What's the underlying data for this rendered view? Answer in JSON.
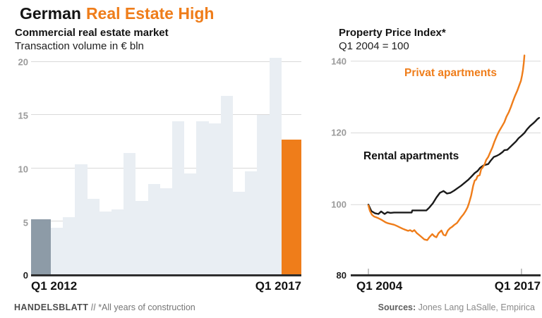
{
  "header": {
    "title_black": "German",
    "title_orange": "Real Estate High"
  },
  "left_chart": {
    "title": "Commercial real estate market",
    "subtitle": "Transaction volume in € bln",
    "x_left_label": "Q1 2012",
    "x_right_label": "Q1 2017"
  },
  "right_chart": {
    "title": "Property Price Index*",
    "subtitle": "Q1 2004 = 100",
    "x_left_label": "Q1 2004",
    "x_right_label": "Q1 2017",
    "label_privat": "Privat apartments",
    "label_rental": "Rental apartments"
  },
  "footer": {
    "brand": "HANDELSBLATT",
    "separator": "//",
    "note": "*All years of construction",
    "sources_label": "Sources:",
    "sources_value": "Jones Lang LaSalle, Empirica"
  },
  "colors": {
    "accent_orange": "#ef7d1a",
    "highlight_gray": "#8d9ba7",
    "background_bar": "#e9eef3",
    "gridline": "#d9d9d9",
    "axis_dark": "#2e2e2e",
    "tick_label": "#9b9b9b",
    "line_black": "#1a1a1a"
  },
  "chart_data": [
    {
      "type": "bar",
      "title": "Commercial real estate market",
      "ylabel": "Transaction volume in € bln",
      "x_start": "Q1 2012",
      "x_end": "Q1 2017",
      "frequency": "quarterly",
      "ylim": [
        0,
        21
      ],
      "yticks": [
        0,
        5,
        10,
        15,
        20
      ],
      "grid": true,
      "values": [
        5.2,
        4.4,
        5.4,
        10.4,
        7.1,
        5.9,
        6.1,
        11.4,
        6.9,
        8.5,
        8.1,
        14.4,
        9.5,
        14.4,
        14.2,
        16.8,
        7.8,
        9.7,
        15.0,
        20.4,
        12.7
      ],
      "highlight_first_color": "#8d9ba7",
      "highlight_last_color": "#ef7d1a",
      "default_color": "#e9eef3"
    },
    {
      "type": "line",
      "title": "Property Price Index*",
      "subtitle": "Q1 2004 = 100",
      "x_unit": "quarters since Q1 2004",
      "xlim": [
        -6,
        58.5
      ],
      "ylim": [
        80,
        142.3
      ],
      "yticks": [
        80,
        100,
        120,
        140
      ],
      "grid": true,
      "x_ticks": [
        {
          "q": 0,
          "label": "Q1 2004"
        },
        {
          "q": 52,
          "label": "Q1 2017"
        }
      ],
      "series": [
        {
          "name": "Privat apartments",
          "color": "#ef7d1a",
          "points": [
            [
              0,
              99.8
            ],
            [
              0.5,
              98.3
            ],
            [
              1.2,
              97.2
            ],
            [
              1.9,
              96.7
            ],
            [
              2.9,
              96.4
            ],
            [
              3.9,
              96.0
            ],
            [
              4.8,
              95.6
            ],
            [
              5.8,
              95.1
            ],
            [
              6.7,
              94.8
            ],
            [
              7.7,
              94.6
            ],
            [
              8.7,
              94.4
            ],
            [
              9.6,
              94.1
            ],
            [
              10.6,
              93.7
            ],
            [
              11.6,
              93.3
            ],
            [
              12.5,
              93.0
            ],
            [
              13.5,
              92.7
            ],
            [
              14.2,
              92.9
            ],
            [
              14.9,
              92.5
            ],
            [
              15.6,
              92.9
            ],
            [
              16.4,
              92.1
            ],
            [
              17.3,
              91.5
            ],
            [
              18.3,
              90.8
            ],
            [
              19,
              90.3
            ],
            [
              20,
              90.1
            ],
            [
              20.7,
              90.9
            ],
            [
              21.7,
              91.8
            ],
            [
              22.4,
              91.2
            ],
            [
              23.1,
              90.9
            ],
            [
              23.8,
              92.0
            ],
            [
              24.8,
              92.8
            ],
            [
              25.5,
              91.6
            ],
            [
              26.2,
              91.4
            ],
            [
              27,
              92.8
            ],
            [
              27.7,
              93.4
            ],
            [
              28.4,
              93.8
            ],
            [
              29.1,
              94.3
            ],
            [
              30.1,
              94.9
            ],
            [
              30.8,
              95.7
            ],
            [
              31.5,
              96.5
            ],
            [
              32.3,
              97.3
            ],
            [
              33,
              98.2
            ],
            [
              33.7,
              99.3
            ],
            [
              34.2,
              100.5
            ],
            [
              34.9,
              102.5
            ],
            [
              35.6,
              105.3
            ],
            [
              36.1,
              106.7
            ],
            [
              36.6,
              107.0
            ],
            [
              37.1,
              108.0
            ],
            [
              37.8,
              108.2
            ],
            [
              38.3,
              109.9
            ],
            [
              38.8,
              110.3
            ],
            [
              39.5,
              111.3
            ],
            [
              40,
              112.4
            ],
            [
              40.7,
              113.3
            ],
            [
              41.4,
              114.6
            ],
            [
              42.1,
              115.9
            ],
            [
              42.8,
              117.5
            ],
            [
              43.6,
              119.1
            ],
            [
              44.3,
              120.3
            ],
            [
              45,
              121.3
            ],
            [
              45.5,
              122.0
            ],
            [
              46.2,
              123.0
            ],
            [
              46.9,
              124.5
            ],
            [
              47.7,
              125.8
            ],
            [
              48.4,
              127.2
            ],
            [
              49.1,
              128.8
            ],
            [
              49.8,
              130.3
            ],
            [
              50.6,
              131.8
            ],
            [
              51.3,
              133.4
            ],
            [
              51.8,
              134.5
            ],
            [
              52.2,
              136.0
            ],
            [
              52.5,
              137.5
            ],
            [
              52.8,
              139.5
            ],
            [
              53,
              141.6
            ]
          ]
        },
        {
          "name": "Rental apartments",
          "color": "#1a1a1a",
          "points": [
            [
              0,
              100
            ],
            [
              1,
              98.2
            ],
            [
              2.2,
              97.6
            ],
            [
              3.4,
              97.4
            ],
            [
              4.3,
              98.1
            ],
            [
              5.5,
              97.4
            ],
            [
              6.5,
              97.9
            ],
            [
              7.5,
              97.7
            ],
            [
              8.7,
              97.8
            ],
            [
              14.7,
              97.8
            ],
            [
              14.9,
              98.4
            ],
            [
              19.7,
              98.4
            ],
            [
              20.7,
              99.2
            ],
            [
              21.9,
              100.4
            ],
            [
              23.1,
              102.0
            ],
            [
              24.3,
              103.3
            ],
            [
              25.5,
              103.8
            ],
            [
              26.7,
              103.1
            ],
            [
              27.9,
              103.3
            ],
            [
              29.1,
              103.9
            ],
            [
              30.3,
              104.6
            ],
            [
              31.5,
              105.3
            ],
            [
              32.7,
              106.1
            ],
            [
              33.9,
              106.9
            ],
            [
              35.1,
              107.9
            ],
            [
              36.1,
              108.8
            ],
            [
              37.1,
              109.4
            ],
            [
              38,
              110.3
            ],
            [
              39,
              110.9
            ],
            [
              39.7,
              111.1
            ],
            [
              40.7,
              111.3
            ],
            [
              41.6,
              112.3
            ],
            [
              42.6,
              113.3
            ],
            [
              43.6,
              113.6
            ],
            [
              44.5,
              114.0
            ],
            [
              45.5,
              114.6
            ],
            [
              46.2,
              115.2
            ],
            [
              47.2,
              115.3
            ],
            [
              48.1,
              116.0
            ],
            [
              49.1,
              116.8
            ],
            [
              50.1,
              117.6
            ],
            [
              51,
              118.5
            ],
            [
              52,
              119.2
            ],
            [
              53,
              120.0
            ],
            [
              53.9,
              121.0
            ],
            [
              54.9,
              121.9
            ],
            [
              55.9,
              122.6
            ],
            [
              56.8,
              123.3
            ],
            [
              57.5,
              123.9
            ],
            [
              58,
              124.2
            ]
          ]
        }
      ]
    }
  ]
}
